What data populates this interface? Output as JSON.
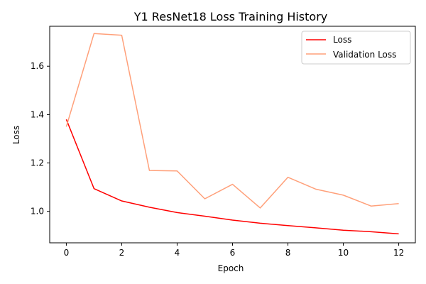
{
  "chart_data": {
    "type": "line",
    "title": "Y1 ResNet18 Loss Training History",
    "xlabel": "Epoch",
    "ylabel": "Loss",
    "xlim": [
      -0.6,
      12.6
    ],
    "ylim": [
      0.87,
      1.765
    ],
    "xticks": [
      0,
      2,
      4,
      6,
      8,
      10,
      12
    ],
    "yticks": [
      1.0,
      1.2,
      1.4,
      1.6
    ],
    "x": [
      0,
      1,
      2,
      3,
      4,
      5,
      6,
      7,
      8,
      9,
      10,
      11,
      12
    ],
    "series": [
      {
        "name": "Loss",
        "color": "#ff0000",
        "values": [
          1.38,
          1.094,
          1.043,
          1.017,
          0.995,
          0.98,
          0.964,
          0.951,
          0.941,
          0.932,
          0.922,
          0.916,
          0.907
        ]
      },
      {
        "name": "Validation Loss",
        "color": "#ffa07a",
        "values": [
          1.35,
          1.735,
          1.728,
          1.169,
          1.167,
          1.052,
          1.112,
          1.014,
          1.141,
          1.092,
          1.067,
          1.022,
          1.032
        ]
      }
    ],
    "legend_position": "top-right",
    "grid": false
  }
}
